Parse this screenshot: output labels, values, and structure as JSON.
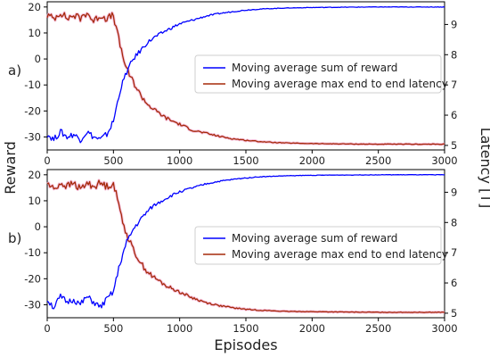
{
  "chart_data": [
    {
      "type": "line",
      "panel_label": "a)",
      "xlabel": "",
      "ylabel": "Reward",
      "y2label": "Latency [T]",
      "xlim": [
        0,
        3000
      ],
      "ylim": [
        -35,
        22
      ],
      "y2lim": [
        4.85,
        9.75
      ],
      "x_ticks": [
        "0",
        "500",
        "1000",
        "1500",
        "2000",
        "2500",
        "3000"
      ],
      "y_ticks": [
        "20",
        "10",
        "0",
        "-10",
        "-20",
        "-30"
      ],
      "y2_ticks": [
        "9",
        "8",
        "7",
        "6",
        "5"
      ],
      "legend": {
        "placement": "center-right",
        "entries": [
          "Moving average sum of reward",
          "Moving average max end to end latency"
        ]
      },
      "series": [
        {
          "name": "Moving average sum of reward",
          "axis": "left",
          "color": "#0000ff",
          "x": [
            0,
            50,
            100,
            150,
            200,
            250,
            300,
            350,
            400,
            450,
            500,
            550,
            600,
            650,
            700,
            750,
            800,
            900,
            1000,
            1100,
            1200,
            1300,
            1400,
            1500,
            1600,
            1700,
            1800,
            2000,
            2200,
            2500,
            3000
          ],
          "y": [
            -29,
            -31,
            -28,
            -30,
            -29,
            -31,
            -28,
            -30,
            -31,
            -29,
            -24,
            -12,
            -5,
            0,
            3,
            6,
            8,
            11,
            13.5,
            15,
            16.5,
            17.5,
            18.2,
            18.8,
            19.2,
            19.4,
            19.6,
            19.8,
            19.9,
            20,
            20
          ]
        },
        {
          "name": "Moving average max end to end latency",
          "axis": "right",
          "color": "#a52a0a",
          "x": [
            0,
            50,
            100,
            150,
            200,
            250,
            300,
            350,
            400,
            450,
            500,
            550,
            600,
            650,
            700,
            750,
            800,
            900,
            1000,
            1100,
            1200,
            1300,
            1400,
            1500,
            1600,
            1700,
            1800,
            2000,
            2200,
            2500,
            3000
          ],
          "y": [
            9.3,
            9.2,
            9.4,
            9.2,
            9.3,
            9.2,
            9.4,
            9.1,
            9.3,
            9.2,
            9.3,
            8.3,
            7.5,
            7.1,
            6.7,
            6.4,
            6.2,
            5.9,
            5.7,
            5.5,
            5.4,
            5.3,
            5.22,
            5.17,
            5.13,
            5.1,
            5.08,
            5.06,
            5.05,
            5.04,
            5.04
          ]
        }
      ]
    },
    {
      "type": "line",
      "panel_label": "b)",
      "xlabel": "Episodes",
      "ylabel": "Reward",
      "y2label": "Latency [T]",
      "xlim": [
        0,
        3000
      ],
      "ylim": [
        -35,
        22
      ],
      "y2lim": [
        4.85,
        9.75
      ],
      "x_ticks": [
        "0",
        "500",
        "1000",
        "1500",
        "2000",
        "2500",
        "3000"
      ],
      "y_ticks": [
        "20",
        "10",
        "0",
        "-10",
        "-20",
        "-30"
      ],
      "y2_ticks": [
        "9",
        "8",
        "7",
        "6",
        "5"
      ],
      "legend": {
        "placement": "center-right",
        "entries": [
          "Moving average sum of reward",
          "Moving average max end to end latency"
        ]
      },
      "series": [
        {
          "name": "Moving average sum of reward",
          "axis": "left",
          "color": "#0000ff",
          "x": [
            0,
            50,
            100,
            150,
            200,
            250,
            300,
            350,
            400,
            450,
            500,
            550,
            600,
            650,
            700,
            750,
            800,
            900,
            1000,
            1100,
            1200,
            1300,
            1400,
            1500,
            1600,
            1700,
            1800,
            2000,
            2200,
            2500,
            3000
          ],
          "y": [
            -28,
            -31,
            -27,
            -29,
            -28,
            -30,
            -27,
            -29,
            -31,
            -28,
            -25,
            -14,
            -6,
            -1,
            2.5,
            5.5,
            8,
            11,
            13.5,
            15,
            16.5,
            17.5,
            18.2,
            18.8,
            19.2,
            19.4,
            19.6,
            19.8,
            19.9,
            20,
            20
          ]
        },
        {
          "name": "Moving average max end to end latency",
          "axis": "right",
          "color": "#a52a0a",
          "x": [
            0,
            50,
            100,
            150,
            200,
            250,
            300,
            350,
            400,
            450,
            500,
            550,
            600,
            650,
            700,
            750,
            800,
            900,
            1000,
            1100,
            1200,
            1300,
            1400,
            1500,
            1600,
            1700,
            1800,
            2000,
            2200,
            2500,
            3000
          ],
          "y": [
            9.3,
            9.1,
            9.3,
            9.2,
            9.3,
            9.1,
            9.3,
            9.2,
            9.3,
            9.2,
            9.3,
            8.4,
            7.6,
            7.1,
            6.7,
            6.4,
            6.2,
            5.9,
            5.7,
            5.5,
            5.35,
            5.25,
            5.18,
            5.13,
            5.1,
            5.08,
            5.06,
            5.05,
            5.04,
            5.03,
            5.03
          ]
        }
      ]
    }
  ]
}
